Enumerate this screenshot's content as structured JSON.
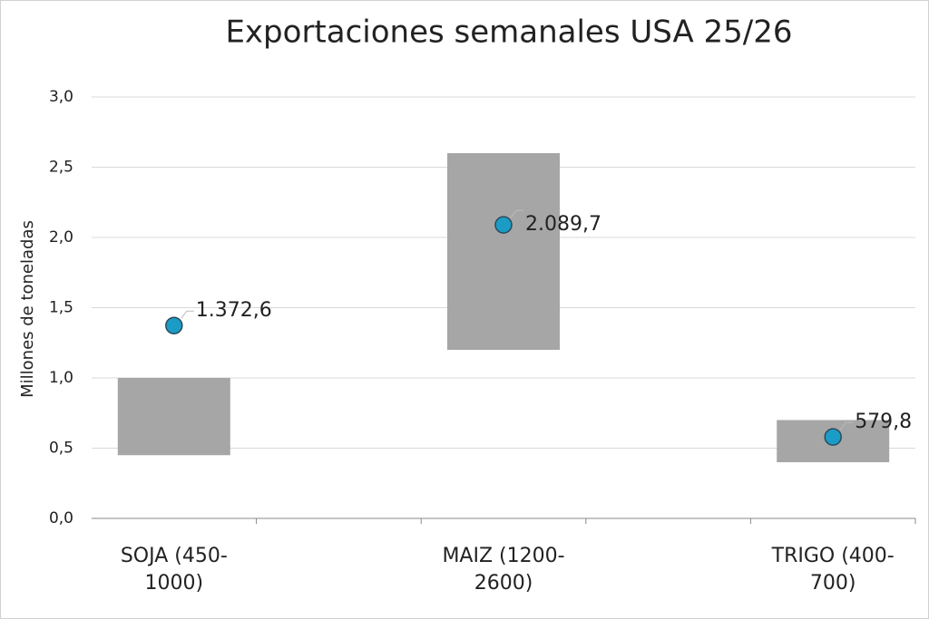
{
  "chart_data": {
    "type": "floating_bar",
    "title": "Exportaciones semanales USA  25/26",
    "y_label": "Millones de toneladas",
    "categories": [
      "SOJA (450-1000)",
      null,
      "MAIZ (1200-2600)",
      null,
      "TRIGO (400-700)"
    ],
    "low": [
      0.45,
      null,
      1.2,
      null,
      0.4
    ],
    "high": [
      1.0,
      null,
      2.6,
      null,
      0.7
    ],
    "values": [
      1.3726,
      null,
      2.0897,
      null,
      0.5798
    ],
    "value_labels": [
      "1.372,6",
      null,
      "2.089,7",
      null,
      "579,8"
    ],
    "bar_color": "#a6a6a6",
    "point_color": "#1b9cc6",
    "ylim": [
      0,
      3
    ],
    "yticks": [
      {
        "value": 0,
        "label": "0,0"
      },
      {
        "value": 0.5,
        "label": "0,5"
      },
      {
        "value": 1,
        "label": "1,0"
      },
      {
        "value": 1.5,
        "label": "1,5"
      },
      {
        "value": 2,
        "label": "2,0"
      },
      {
        "value": 2.5,
        "label": "2,5"
      },
      {
        "value": 3,
        "label": "3,0"
      }
    ],
    "grid": true
  }
}
